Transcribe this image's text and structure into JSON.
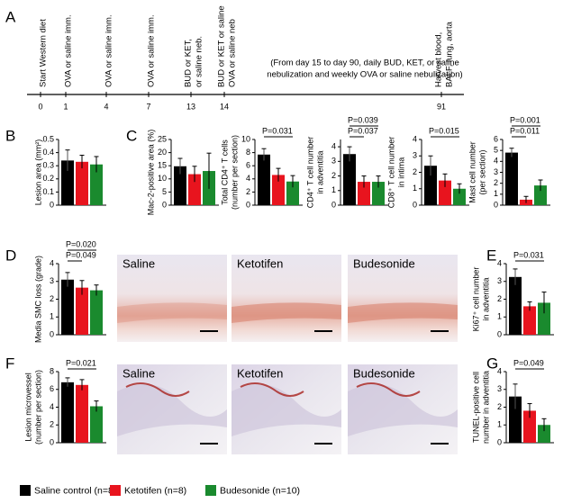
{
  "panel_labels": [
    "A",
    "B",
    "C",
    "D",
    "E",
    "F",
    "G"
  ],
  "timeline": {
    "events": [
      {
        "day": 0,
        "label": [
          "Start Western diet"
        ]
      },
      {
        "day": 1,
        "label": [
          "OVA or saline imm."
        ]
      },
      {
        "day": 4,
        "label": [
          "OVA or saline imm."
        ]
      },
      {
        "day": 7,
        "label": [
          "OVA or saline imm."
        ]
      },
      {
        "day": 13,
        "label": [
          "BUD or KET,",
          "or saline neb."
        ]
      },
      {
        "day": 14,
        "label": [
          "BUD or KET or saline",
          "OVA or saline neb"
        ]
      },
      {
        "day": 91,
        "label": [
          "Harvest blood,",
          "BALF, lung, aorta"
        ]
      }
    ],
    "note": [
      "(From day 15 to day 90, daily BUD, KET, or saline",
      "nebulization and weekly OVA or saline nebulization)"
    ]
  },
  "chart_data": [
    {
      "type": "bar",
      "ylabel": [
        "Lesion area (mm²)"
      ],
      "ylim": [
        0,
        0.5
      ],
      "yticks": [
        0,
        0.1,
        0.2,
        0.3,
        0.4,
        0.5
      ],
      "values": [
        0.34,
        0.33,
        0.31
      ],
      "errors": [
        0.08,
        0.05,
        0.06
      ],
      "annotations": []
    },
    {
      "type": "bar",
      "ylabel": [
        "Mac-2-positive area (%)"
      ],
      "ylim": [
        0,
        25
      ],
      "yticks": [
        0,
        5,
        10,
        15,
        20,
        25
      ],
      "values": [
        14.8,
        11.8,
        13.0
      ],
      "errors": [
        3.0,
        3.0,
        6.8
      ],
      "annotations": []
    },
    {
      "type": "bar",
      "ylabel": [
        "Total CD4⁺ T cells",
        "(number per section)"
      ],
      "ylim": [
        0,
        10
      ],
      "yticks": [
        0,
        2,
        4,
        6,
        8,
        10
      ],
      "values": [
        7.7,
        4.6,
        3.6
      ],
      "errors": [
        0.9,
        1.0,
        0.9
      ],
      "annotations": [
        "P=0.031"
      ]
    },
    {
      "type": "bar",
      "ylabel": [
        "CD4⁺ T cell number",
        "in adventitia"
      ],
      "ylim": [
        0,
        4.5
      ],
      "yticks": [
        0,
        1,
        2,
        3,
        4
      ],
      "values": [
        3.5,
        1.6,
        1.6
      ],
      "errors": [
        0.5,
        0.4,
        0.4
      ],
      "annotations": [
        "P=0.039",
        "P=0.037"
      ]
    },
    {
      "type": "bar",
      "ylabel": [
        "CD8⁺ T cell number",
        "in intima"
      ],
      "ylim": [
        0,
        4
      ],
      "yticks": [
        0,
        1,
        2,
        3,
        4
      ],
      "values": [
        2.4,
        1.5,
        1.0
      ],
      "errors": [
        0.6,
        0.4,
        0.3
      ],
      "annotations": [
        "P=0.015"
      ]
    },
    {
      "type": "bar",
      "ylabel": [
        "Mast cell number",
        "(per section)"
      ],
      "ylim": [
        0,
        6
      ],
      "yticks": [
        0,
        1,
        2,
        3,
        4,
        5,
        6
      ],
      "values": [
        4.8,
        0.5,
        1.8
      ],
      "errors": [
        0.4,
        0.3,
        0.5
      ],
      "annotations": [
        "P=0.001",
        "P=0.011"
      ]
    },
    {
      "type": "bar",
      "ylabel": [
        "Media SMC loss (grade)"
      ],
      "ylim": [
        0,
        4
      ],
      "yticks": [
        0,
        1,
        2,
        3,
        4
      ],
      "values": [
        3.1,
        2.65,
        2.5
      ],
      "errors": [
        0.4,
        0.4,
        0.3
      ],
      "annotations": [
        "P=0.020",
        "P=0.049"
      ]
    },
    {
      "type": "bar",
      "ylabel": [
        "Ki67⁺ cell number",
        "in adventitia"
      ],
      "ylim": [
        0,
        4
      ],
      "yticks": [
        0,
        1,
        2,
        3,
        4
      ],
      "values": [
        3.25,
        1.6,
        1.8
      ],
      "errors": [
        0.45,
        0.25,
        0.6
      ],
      "annotations": [
        "P=0.031"
      ]
    },
    {
      "type": "bar",
      "ylabel": [
        "Lesion microvessel",
        "(number per section)"
      ],
      "ylim": [
        0,
        8
      ],
      "yticks": [
        0,
        2,
        4,
        6,
        8
      ],
      "values": [
        6.8,
        6.5,
        4.1
      ],
      "errors": [
        0.5,
        0.6,
        0.6
      ],
      "annotations": [
        "P=0.021"
      ]
    },
    {
      "type": "bar",
      "ylabel": [
        "TUNEL-positive cell",
        "number in adventitia"
      ],
      "ylim": [
        0,
        4
      ],
      "yticks": [
        0,
        1,
        2,
        3,
        4
      ],
      "values": [
        2.6,
        1.8,
        1.0
      ],
      "errors": [
        0.7,
        0.4,
        0.35
      ],
      "annotations": [
        "P=0.049"
      ]
    }
  ],
  "micrographs": [
    {
      "label": "Saline"
    },
    {
      "label": "Ketotifen"
    },
    {
      "label": "Budesonide"
    },
    {
      "label": "Saline"
    },
    {
      "label": "Ketotifen"
    },
    {
      "label": "Budesonide"
    }
  ],
  "legend": [
    {
      "name": "Saline control (n=8)",
      "color": "#000000"
    },
    {
      "name": "Ketotifen (n=8)",
      "color": "#e8141e"
    },
    {
      "name": "Budesonide (n=10)",
      "color": "#1a8a2e"
    }
  ]
}
